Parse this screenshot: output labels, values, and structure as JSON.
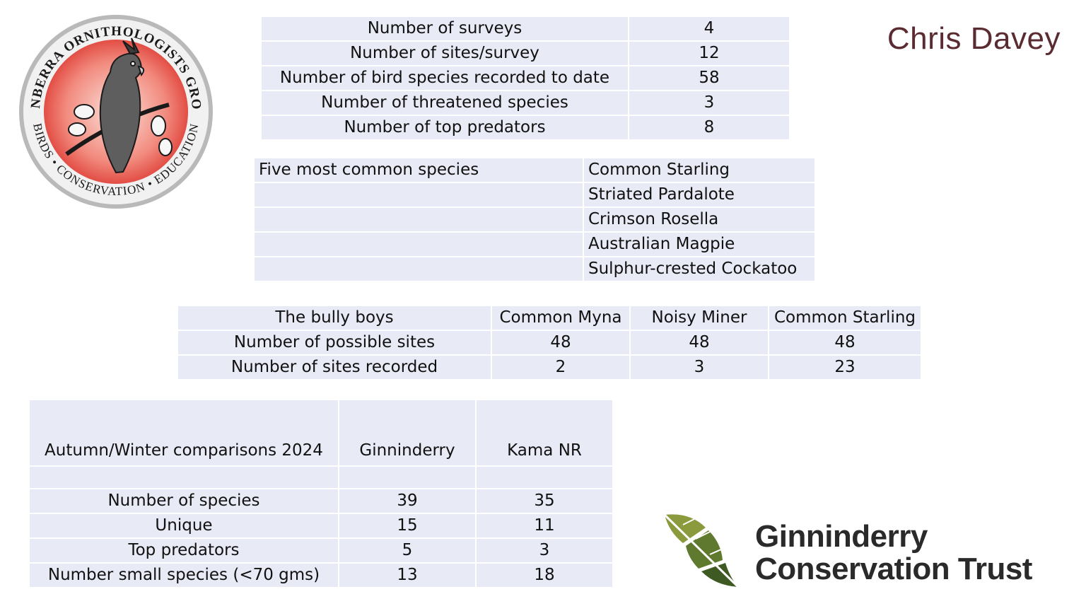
{
  "presenter": "Chris Davey",
  "cog_logo": {
    "ring_top": "CANBERRA ORNITHOLOGISTS GROUP",
    "ring_bottom": "BIRDS • CONSERVATION • EDUCATION"
  },
  "survey_summary": [
    {
      "label": "Number of surveys",
      "value": "4"
    },
    {
      "label": "Number of sites/survey",
      "value": "12"
    },
    {
      "label": "Number of bird species recorded to date",
      "value": "58"
    },
    {
      "label": "Number of threatened species",
      "value": "3"
    },
    {
      "label": "Number of top predators",
      "value": "8"
    }
  ],
  "common_species": {
    "label": "Five most common species",
    "items": [
      "Common Starling",
      "Striated Pardalote",
      "Crimson Rosella",
      "Australian Magpie",
      "Sulphur-crested Cockatoo"
    ]
  },
  "bully_boys": {
    "header": [
      "The bully boys",
      "Common Myna",
      "Noisy Miner",
      "Common Starling"
    ],
    "rows": [
      [
        "Number of possible sites",
        "48",
        "48",
        "48"
      ],
      [
        "Number of sites recorded",
        "2",
        "3",
        "23"
      ]
    ]
  },
  "comparison": {
    "header": [
      "Autumn/Winter comparisons 2024",
      "Ginninderry",
      "Kama NR"
    ],
    "rows": [
      [
        "Number of species",
        "39",
        "35"
      ],
      [
        "Unique",
        "15",
        "11"
      ],
      [
        "Top predators",
        "5",
        "3"
      ],
      [
        "Number small species (<70 gms)",
        "13",
        "18"
      ]
    ]
  },
  "trust_logo": {
    "line1": "Ginninderry",
    "line2": "Conservation Trust"
  }
}
